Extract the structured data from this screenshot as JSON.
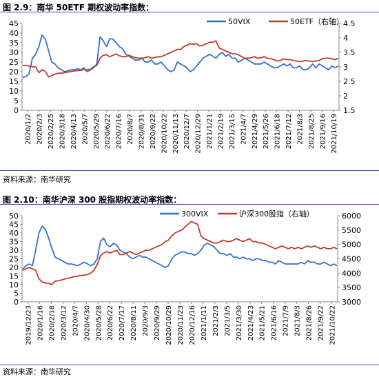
{
  "colors": {
    "vix": "#2f6fcf",
    "idx": "#c0392b",
    "rule": "#2f5597"
  },
  "source_label": "资料来源：南华研究",
  "chart_data": [
    {
      "type": "line",
      "title": "图 2.9：南华 50ETF 期权波动率指数：",
      "legend_position": "top-right",
      "xlabel": "",
      "ylabel": "",
      "left_axis": {
        "ylim": [
          0,
          45
        ],
        "ticks": [
          "0",
          "5",
          "10",
          "15",
          "20",
          "25",
          "30",
          "35",
          "40",
          "45"
        ]
      },
      "right_axis": {
        "ylim": [
          1.5,
          4.5
        ],
        "ticks": [
          "1.5",
          "2",
          "2.5",
          "3",
          "3.5",
          "4",
          "4.5"
        ]
      },
      "x_ticks": [
        "2020/1/2",
        "2020/2/3",
        "2020/2/25",
        "2020/3/18",
        "2020/4/13",
        "2020/5/7",
        "2020/5/29",
        "2020/6/22",
        "2020/7/16",
        "2020/8/7",
        "2020/8/31",
        "2020/9/22",
        "2020/10/22",
        "2020/11/13",
        "2020/12/7",
        "2020/12/29",
        "2021/1/21",
        "2021/2/19",
        "2021/3/15",
        "2021/4/7",
        "2021/4/29",
        "2021/5/26",
        "2021/6/18",
        "2021/7/12",
        "2021/8/3",
        "2021/8/25",
        "2021/9/16",
        "2021/10/19"
      ],
      "series": [
        {
          "name": "50VIX",
          "axis": "left",
          "values": [
            17,
            17.5,
            19,
            27,
            29,
            33,
            39,
            37,
            31,
            25,
            24,
            22,
            21,
            20,
            20.5,
            21,
            21,
            21.5,
            21,
            22,
            20,
            21,
            22,
            24,
            38,
            36,
            33,
            37,
            37,
            35,
            33,
            32,
            29,
            28,
            27,
            26,
            26,
            27,
            25,
            25,
            26,
            24,
            24,
            25,
            23,
            21,
            20,
            21,
            25,
            24,
            23,
            22,
            20,
            21,
            23,
            25,
            27,
            28,
            29,
            28,
            27,
            29,
            30,
            28,
            29,
            27,
            27,
            25,
            26,
            27,
            26,
            25,
            24,
            24,
            24,
            25,
            24,
            23,
            22,
            22,
            23,
            24,
            23,
            24,
            22,
            22,
            23,
            21,
            21,
            22,
            24,
            22,
            24,
            23,
            22,
            21,
            23,
            22,
            23
          ]
        },
        {
          "name": "50ETF（右轴）",
          "axis": "right",
          "values": [
            3.05,
            3.05,
            3.03,
            3.0,
            3.0,
            2.8,
            2.9,
            2.85,
            2.65,
            2.7,
            2.75,
            2.78,
            2.78,
            2.8,
            2.82,
            2.84,
            2.86,
            2.87,
            2.88,
            2.9,
            2.9,
            2.92,
            3.0,
            3.05,
            3.3,
            3.4,
            3.42,
            3.35,
            3.4,
            3.45,
            3.38,
            3.35,
            3.35,
            3.4,
            3.35,
            3.32,
            3.3,
            3.3,
            3.32,
            3.35,
            3.3,
            3.32,
            3.35,
            3.35,
            3.4,
            3.45,
            3.5,
            3.55,
            3.6,
            3.6,
            3.7,
            3.75,
            3.8,
            3.78,
            3.8,
            3.72,
            3.75,
            3.8,
            3.85,
            3.85,
            3.9,
            3.65,
            3.6,
            3.55,
            3.5,
            3.45,
            3.45,
            3.42,
            3.35,
            3.3,
            3.3,
            3.32,
            3.35,
            3.3,
            3.32,
            3.35,
            3.3,
            3.28,
            3.25,
            3.2,
            3.22,
            3.28,
            3.25,
            3.25,
            3.22,
            3.2,
            3.18,
            3.2,
            3.22,
            3.2,
            3.18,
            3.2,
            3.22,
            3.28,
            3.3,
            3.3,
            3.28,
            3.25,
            3.3
          ]
        }
      ]
    },
    {
      "type": "line",
      "title": "图 2.10：南华沪深 300 股指期权波动率指数：",
      "legend_position": "top-right",
      "xlabel": "",
      "ylabel": "",
      "left_axis": {
        "ylim": [
          0,
          50
        ],
        "ticks": [
          "0",
          "5",
          "10",
          "15",
          "20",
          "25",
          "30",
          "35",
          "40",
          "45",
          "50"
        ]
      },
      "right_axis": {
        "ylim": [
          3000,
          6000
        ],
        "ticks": [
          "3000",
          "3500",
          "4000",
          "4500",
          "5000",
          "5500",
          "6000"
        ]
      },
      "x_ticks": [
        "2019/12/23",
        "2020/1/16",
        "2020/2/18",
        "2020/3/12",
        "2020/4/7",
        "2020/4/30",
        "2020/5/28",
        "2020/6/22",
        "2020/7/17",
        "2020/8/11",
        "2020/9/3",
        "2020/9/29",
        "2020/10/29",
        "2020/11/23",
        "2020/12/16",
        "2021/1/11",
        "2021/2/3",
        "2021/3/5",
        "2021/3/30",
        "2021/4/23",
        "2021/5/21",
        "2021/6/16",
        "2021/7/9",
        "2021/8/3",
        "2021/8/26",
        "2021/9/22",
        "2021/10/22"
      ],
      "series": [
        {
          "name": "300VIX",
          "axis": "left",
          "values": [
            19,
            21,
            22,
            21,
            30,
            40,
            44,
            42,
            37,
            31,
            26,
            25,
            24,
            23,
            22,
            22,
            21.5,
            21,
            22,
            23,
            22,
            21,
            22,
            25,
            35,
            37,
            33,
            32,
            34,
            33,
            30,
            29,
            28,
            26,
            25,
            26,
            27,
            26,
            26,
            25,
            24,
            23,
            22,
            21,
            20,
            21,
            25,
            27,
            28,
            29,
            29,
            28,
            28,
            27,
            28,
            30,
            33,
            34,
            33,
            32,
            30,
            28,
            28,
            27,
            28,
            26,
            26,
            25,
            26,
            25,
            25,
            24,
            25,
            25,
            24,
            24,
            23,
            23,
            22,
            24,
            23,
            22,
            22,
            22,
            22,
            22,
            23,
            22,
            24,
            23,
            23,
            22,
            22,
            23,
            22,
            21,
            22,
            21
          ]
        },
        {
          "name": "沪深300股指（右轴）",
          "axis": "right",
          "values": [
            4100,
            4150,
            4200,
            4150,
            4100,
            3800,
            3700,
            3650,
            3650,
            3600,
            3720,
            3740,
            3760,
            3800,
            3820,
            3850,
            3880,
            3900,
            3920,
            3930,
            3950,
            4000,
            4100,
            4300,
            4600,
            4700,
            4750,
            4700,
            4750,
            4800,
            4650,
            4650,
            4700,
            4750,
            4700,
            4650,
            4700,
            4750,
            4800,
            4800,
            4850,
            4900,
            4950,
            5000,
            5100,
            5150,
            5300,
            5400,
            5450,
            5500,
            5600,
            5700,
            5800,
            5750,
            5700,
            5300,
            5200,
            5150,
            5100,
            5050,
            5050,
            5100,
            5150,
            5100,
            5100,
            5150,
            5200,
            5150,
            5100,
            5150,
            5200,
            5100,
            5100,
            5050,
            5050,
            5000,
            4950,
            4900,
            4850,
            4900,
            4950,
            4900,
            4850,
            4900,
            4850,
            4900,
            4850,
            4900,
            4950,
            4900,
            4950,
            4900,
            4850,
            4900,
            4850,
            4850,
            4900,
            4850
          ]
        }
      ]
    }
  ]
}
